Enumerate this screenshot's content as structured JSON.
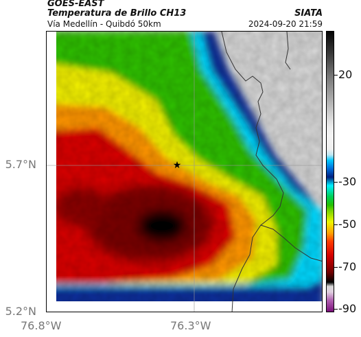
{
  "header": {
    "satellite": "GOES-EAST",
    "product": "Temperatura de Brillo CH13",
    "organization": "SIATA",
    "route": "Vía Medellín - Quibdó 50km",
    "datetime": "2024-09-20 21:59"
  },
  "axes": {
    "lat_ticks": [
      "5.7°N",
      "5.2°N"
    ],
    "lon_ticks": [
      "76.8°W",
      "76.3°W"
    ]
  },
  "colorbar": {
    "labels": [
      "20",
      "-30",
      "-50",
      "-70",
      "-90"
    ]
  },
  "colors": {
    "coldest_core": "#050505",
    "cold_red": "#d40000",
    "warm_green": "#25c000",
    "clear_gray": "#d4d4d4",
    "boundary_line": "#333333"
  }
}
